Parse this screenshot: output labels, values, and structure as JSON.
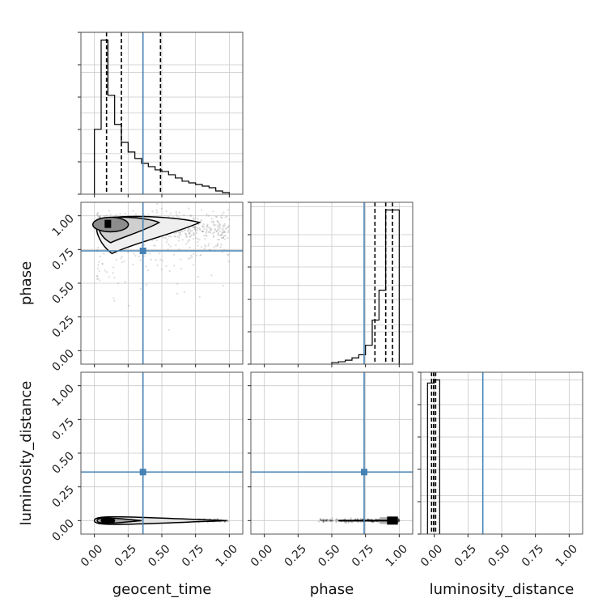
{
  "chart_data": {
    "type": "corner",
    "parameters": [
      "geocent_time",
      "phase",
      "luminosity_distance"
    ],
    "axis_labels": {
      "geocent_time": "geocent_time",
      "phase": "phase",
      "luminosity_distance": "luminosity_distance"
    },
    "tick_values": [
      0.0,
      0.25,
      0.5,
      0.75,
      1.0
    ],
    "tick_labels": [
      "0.00",
      "0.25",
      "0.50",
      "0.75",
      "1.00"
    ],
    "truth": {
      "geocent_time": 0.36,
      "phase": 0.74,
      "luminosity_distance": 0.36
    },
    "truth_color": "#4682b4",
    "grid": true,
    "panels": [
      {
        "id": "hist-geocent_time",
        "type": "histogram",
        "param": "geocent_time",
        "xlim": [
          -0.1,
          1.1
        ],
        "bin_edges": [
          0.0,
          0.05,
          0.1,
          0.15,
          0.2,
          0.25,
          0.3,
          0.35,
          0.4,
          0.45,
          0.5,
          0.55,
          0.6,
          0.65,
          0.7,
          0.75,
          0.8,
          0.85,
          0.9,
          0.95,
          1.0
        ],
        "counts": [
          0.4,
          0.95,
          0.61,
          0.43,
          0.32,
          0.26,
          0.22,
          0.19,
          0.17,
          0.15,
          0.14,
          0.12,
          0.1,
          0.08,
          0.07,
          0.06,
          0.05,
          0.04,
          0.02,
          0.01
        ],
        "quantiles": [
          0.09,
          0.2,
          0.49
        ]
      },
      {
        "id": "hist-phase",
        "type": "histogram",
        "param": "phase",
        "xlim": [
          -0.1,
          1.1
        ],
        "bin_edges": [
          0.5,
          0.55,
          0.6,
          0.65,
          0.7,
          0.75,
          0.8,
          0.85,
          0.9,
          0.95,
          1.0
        ],
        "counts": [
          0.01,
          0.015,
          0.025,
          0.04,
          0.06,
          0.12,
          0.28,
          0.47,
          0.98,
          0.98
        ],
        "quantiles": [
          0.82,
          0.9,
          0.95
        ]
      },
      {
        "id": "hist-luminosity_distance",
        "type": "histogram",
        "param": "luminosity_distance",
        "xlim": [
          -0.1,
          1.1
        ],
        "bin_edges": [
          -0.05,
          0.0,
          0.04
        ],
        "counts": [
          0.98,
          1.0
        ],
        "quantiles": [
          -0.02,
          -0.005,
          0.01
        ]
      },
      {
        "id": "scatter-phase-vs-geocent_time",
        "type": "density2d",
        "x": "geocent_time",
        "y": "phase",
        "xlim": [
          -0.1,
          1.1
        ],
        "ylim": [
          -0.1,
          1.1
        ],
        "peak": [
          0.1,
          0.94
        ]
      },
      {
        "id": "scatter-luminosity_distance-vs-geocent_time",
        "type": "density2d",
        "x": "geocent_time",
        "y": "luminosity_distance",
        "xlim": [
          -0.1,
          1.1
        ],
        "ylim": [
          -0.1,
          1.1
        ],
        "peak": [
          0.1,
          0.0
        ]
      },
      {
        "id": "scatter-luminosity_distance-vs-phase",
        "type": "density2d",
        "x": "phase",
        "y": "luminosity_distance",
        "xlim": [
          -0.1,
          1.1
        ],
        "ylim": [
          -0.1,
          1.1
        ],
        "peak": [
          0.94,
          0.0
        ]
      }
    ]
  }
}
